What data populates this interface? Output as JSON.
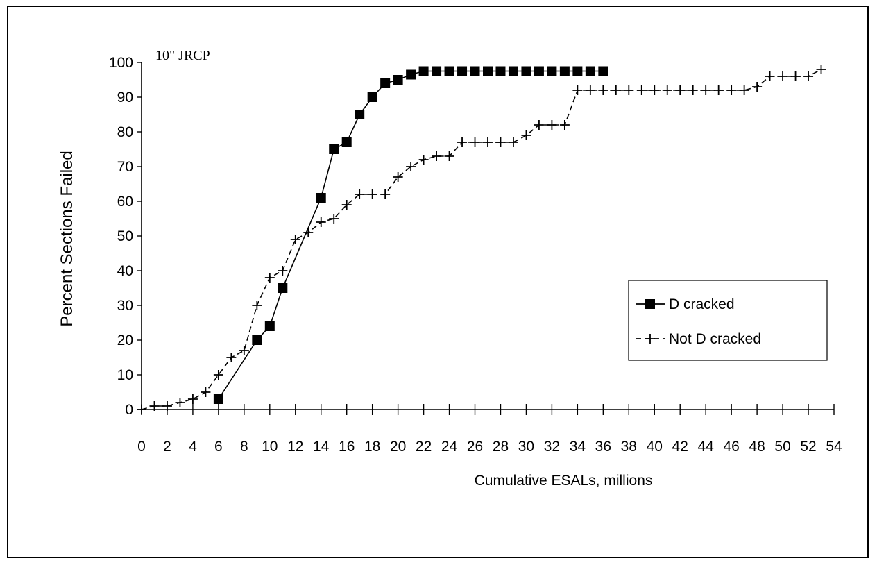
{
  "chart_data": {
    "type": "line",
    "title": "",
    "annotation": "10\" JRCP",
    "xlabel": "Cumulative ESALs, millions",
    "ylabel": "Percent Sections Failed",
    "xlim": [
      0,
      54
    ],
    "ylim": [
      0,
      100
    ],
    "x_tick_labels": [
      "0",
      "2",
      "4",
      "6",
      "8",
      "10",
      "12",
      "14",
      "16",
      "18",
      "20",
      "22",
      "24",
      "26",
      "28",
      "30",
      "32",
      "34",
      "36",
      "38",
      "40",
      "42",
      "44",
      "46",
      "48",
      "50",
      "52",
      "54"
    ],
    "y_tick_labels": [
      "0",
      "10",
      "20",
      "30",
      "40",
      "50",
      "60",
      "70",
      "80",
      "90",
      "100"
    ],
    "x_ticks": [
      0,
      2,
      4,
      6,
      8,
      10,
      12,
      14,
      16,
      18,
      20,
      22,
      24,
      26,
      28,
      30,
      32,
      34,
      36,
      38,
      40,
      42,
      44,
      46,
      48,
      50,
      52,
      54
    ],
    "y_ticks": [
      0,
      10,
      20,
      30,
      40,
      50,
      60,
      70,
      80,
      90,
      100
    ],
    "grid": false,
    "legend_position": "right",
    "series": [
      {
        "name": "D cracked",
        "marker": "square",
        "color": "#000000",
        "x": [
          6,
          9,
          10,
          11,
          14,
          15,
          16,
          17,
          18,
          19,
          20,
          21,
          22,
          23,
          24,
          25,
          26,
          27,
          28,
          29,
          30,
          31,
          32,
          33,
          34,
          35,
          36
        ],
        "y": [
          3,
          20,
          24,
          35,
          61,
          75,
          77,
          85,
          90,
          94,
          95,
          96.5,
          97.5,
          97.5,
          97.5,
          97.5,
          97.5,
          97.5,
          97.5,
          97.5,
          97.5,
          97.5,
          97.5,
          97.5,
          97.5,
          97.5,
          97.5
        ]
      },
      {
        "name": "Not D cracked",
        "marker": "plus",
        "color": "#000000",
        "x": [
          0,
          1,
          2,
          3,
          4,
          5,
          6,
          7,
          8,
          9,
          10,
          11,
          12,
          13,
          14,
          15,
          16,
          17,
          18,
          19,
          20,
          21,
          22,
          23,
          24,
          25,
          26,
          27,
          28,
          29,
          30,
          31,
          32,
          33,
          34,
          35,
          36,
          37,
          38,
          39,
          40,
          41,
          42,
          43,
          44,
          45,
          46,
          47,
          48,
          49,
          50,
          51,
          52,
          53
        ],
        "y": [
          0,
          1,
          1,
          2,
          3,
          5,
          10,
          15,
          17,
          30,
          38,
          40,
          49,
          51,
          54,
          55,
          59,
          62,
          62,
          62,
          67,
          70,
          72,
          73,
          73,
          77,
          77,
          77,
          77,
          77,
          79,
          82,
          82,
          82,
          92,
          92,
          92,
          92,
          92,
          92,
          92,
          92,
          92,
          92,
          92,
          92,
          92,
          92,
          93,
          96,
          96,
          96,
          96,
          98
        ]
      }
    ]
  }
}
